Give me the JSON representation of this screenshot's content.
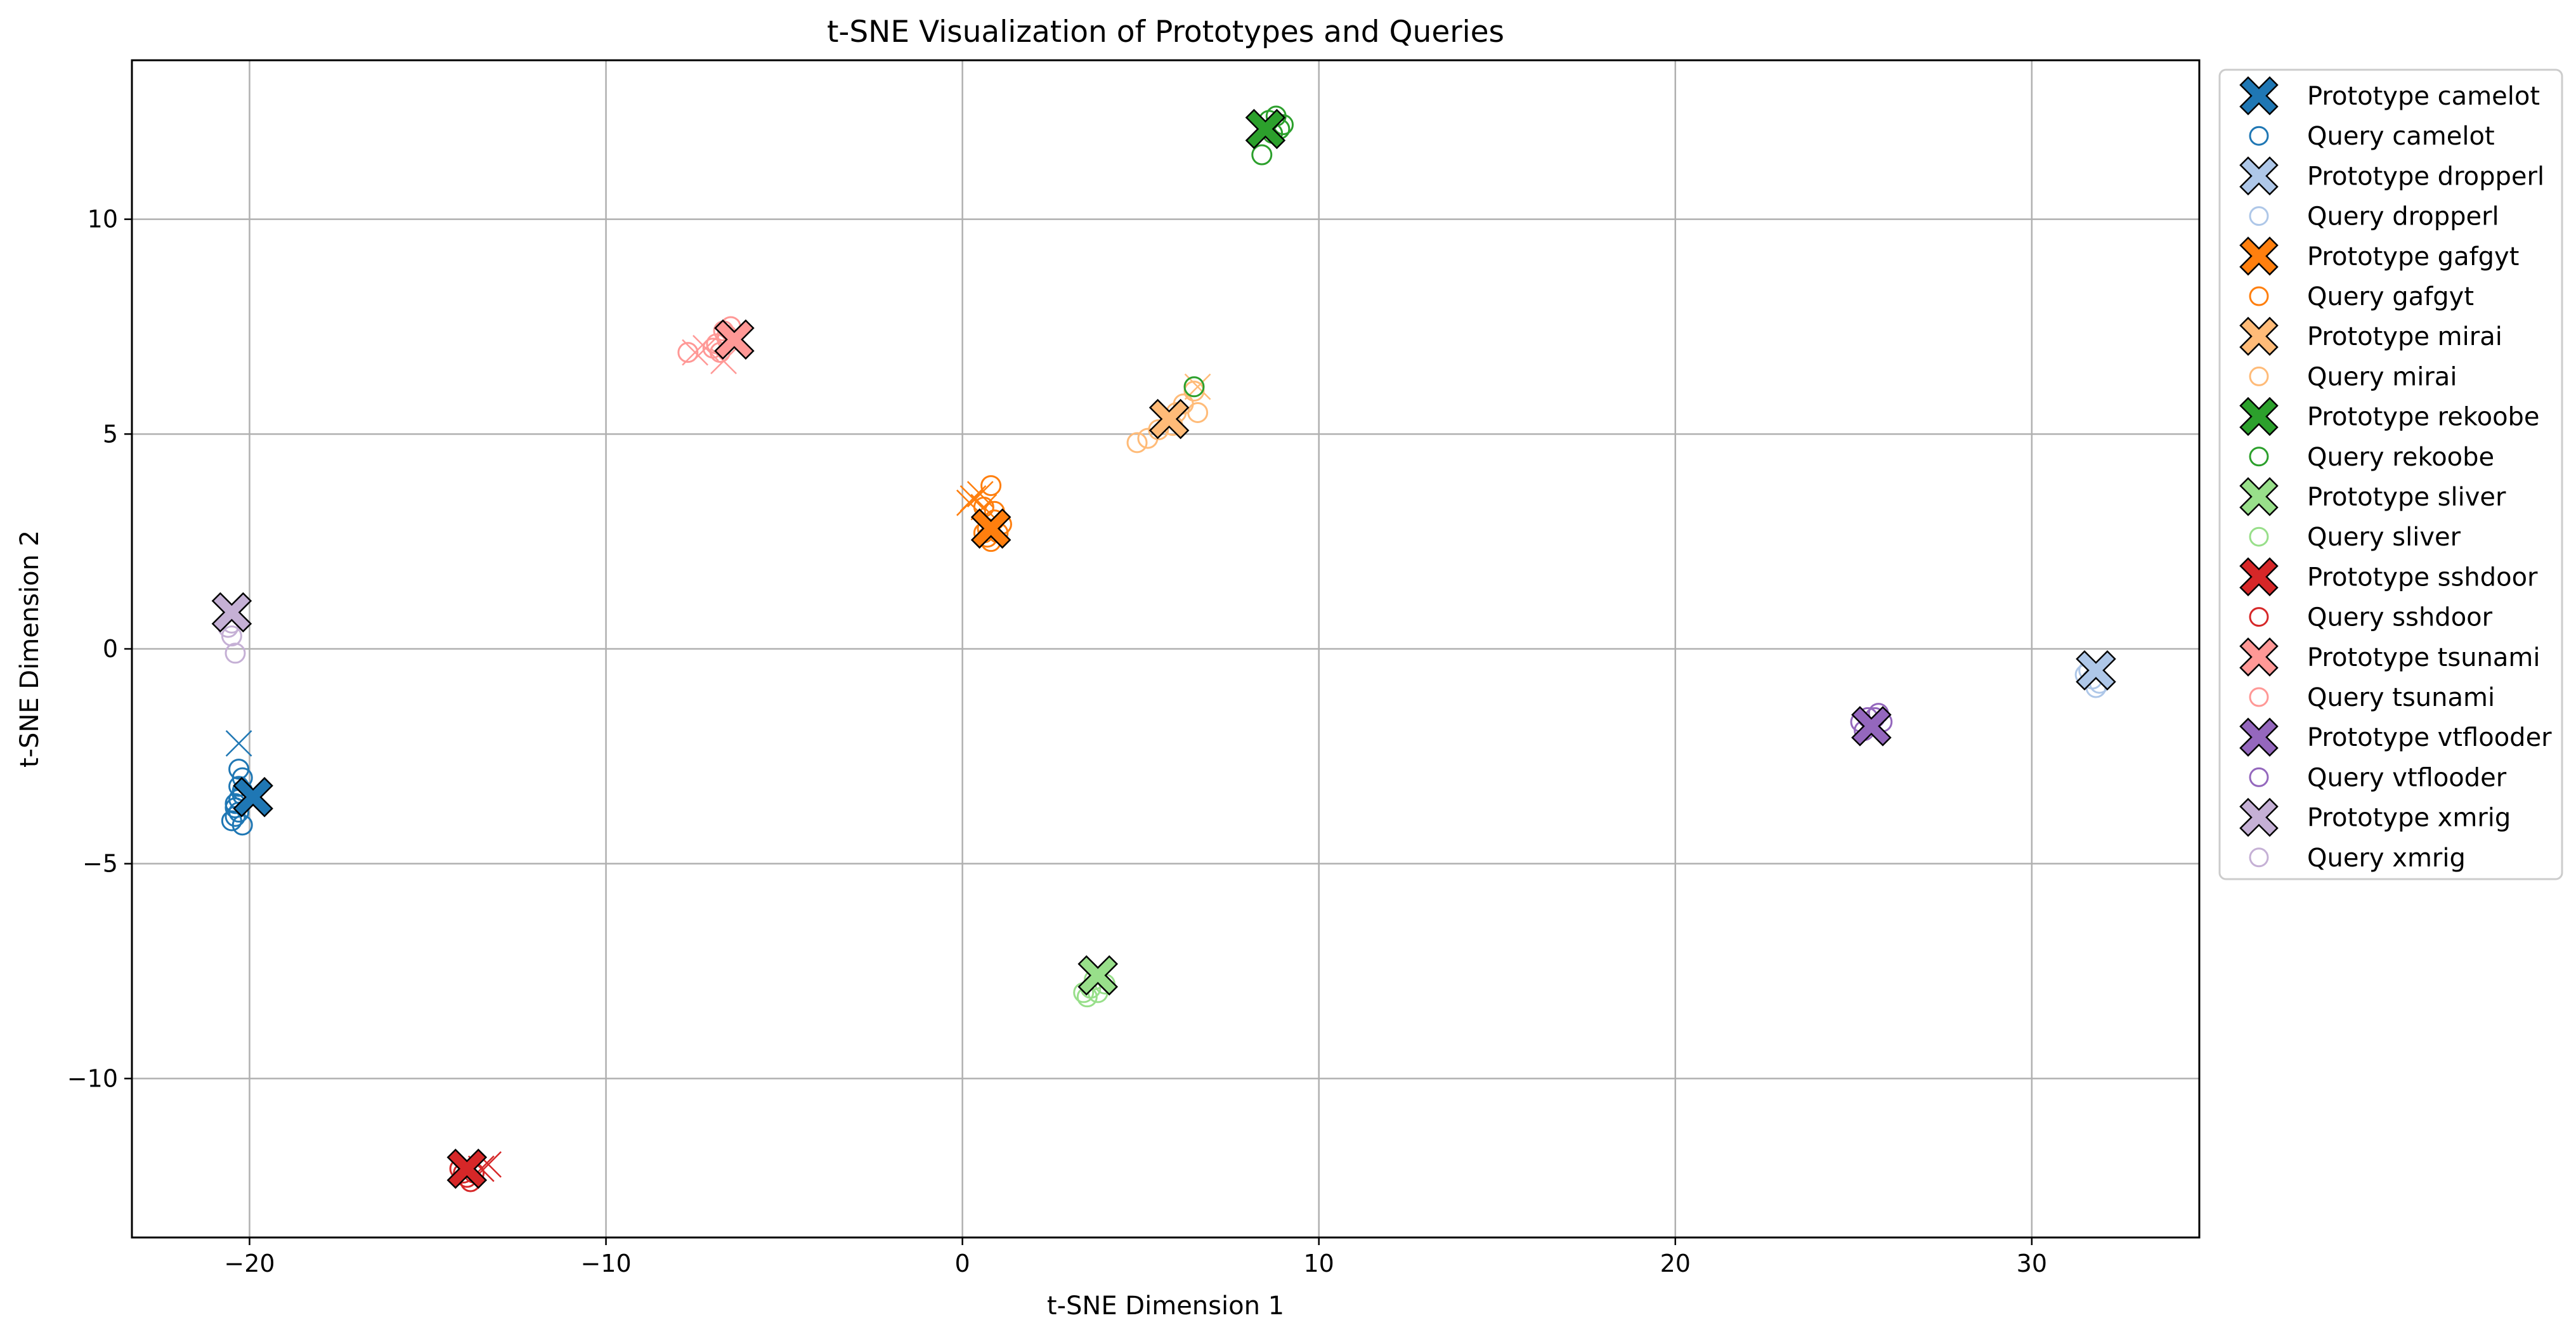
{
  "chart_data": {
    "type": "scatter",
    "title": "t-SNE Visualization of Prototypes and Queries",
    "xlabel": "t-SNE Dimension 1",
    "ylabel": "t-SNE Dimension 2",
    "xlim": [
      -23.3,
      34.7
    ],
    "ylim": [
      -13.7,
      13.7
    ],
    "xticks": [
      -20,
      -10,
      0,
      10,
      20,
      30
    ],
    "yticks": [
      -10,
      -5,
      0,
      5,
      10
    ],
    "xtick_labels": [
      "−20",
      "−10",
      "0",
      "10",
      "20",
      "30"
    ],
    "ytick_labels": [
      "−10",
      "−5",
      "0",
      "5",
      "10"
    ],
    "grid": true,
    "legend_position": "outside-right",
    "series": [
      {
        "name": "camelot",
        "color": "#1f77b4",
        "prototype": [
          -19.9,
          -3.45
        ],
        "queries": [
          [
            -20.3,
            -2.8
          ],
          [
            -20.2,
            -3.0
          ],
          [
            -20.3,
            -3.2
          ],
          [
            -20.2,
            -3.4
          ],
          [
            -20.4,
            -3.6
          ],
          [
            -20.3,
            -3.8
          ],
          [
            -20.5,
            -4.0
          ],
          [
            -20.2,
            -4.1
          ],
          [
            -20.4,
            -3.9
          ],
          [
            -20.3,
            -3.5
          ],
          [
            -20.2,
            -3.3
          ],
          [
            -20.4,
            -3.7
          ]
        ],
        "misclassified": [
          [
            -20.3,
            -2.2
          ]
        ]
      },
      {
        "name": "dropperl",
        "color": "#aec7e8",
        "prototype": [
          31.8,
          -0.5
        ],
        "queries": [
          [
            31.5,
            -0.6
          ],
          [
            31.7,
            -0.7
          ],
          [
            31.9,
            -0.8
          ],
          [
            31.6,
            -0.5
          ],
          [
            31.8,
            -0.9
          ]
        ],
        "misclassified": []
      },
      {
        "name": "gafgyt",
        "color": "#ff7f0e",
        "prototype": [
          0.8,
          2.8
        ],
        "queries": [
          [
            0.8,
            3.8
          ],
          [
            0.6,
            3.3
          ],
          [
            0.9,
            3.0
          ],
          [
            0.7,
            2.6
          ],
          [
            1.0,
            2.7
          ],
          [
            0.8,
            2.5
          ],
          [
            0.6,
            2.7
          ],
          [
            1.1,
            2.9
          ],
          [
            0.9,
            3.2
          ],
          [
            0.7,
            2.8
          ]
        ],
        "misclassified": [
          [
            0.3,
            3.5
          ],
          [
            0.5,
            3.6
          ],
          [
            0.2,
            3.4
          ],
          [
            0.6,
            3.3
          ]
        ]
      },
      {
        "name": "mirai",
        "color": "#ffbb78",
        "prototype": [
          5.8,
          5.35
        ],
        "queries": [
          [
            4.9,
            4.8
          ],
          [
            5.2,
            4.9
          ],
          [
            5.5,
            5.1
          ],
          [
            6.0,
            5.5
          ],
          [
            6.2,
            5.7
          ],
          [
            6.6,
            5.5
          ],
          [
            6.5,
            6.0
          ],
          [
            5.9,
            5.2
          ]
        ],
        "misclassified": [
          [
            6.6,
            6.1
          ]
        ]
      },
      {
        "name": "rekoobe",
        "color": "#2ca02c",
        "prototype": [
          8.5,
          12.1
        ],
        "queries": [
          [
            8.4,
            11.5
          ],
          [
            8.6,
            12.3
          ],
          [
            8.8,
            12.4
          ],
          [
            8.9,
            12.1
          ],
          [
            8.7,
            12.0
          ],
          [
            9.0,
            12.2
          ],
          [
            6.5,
            6.1
          ]
        ],
        "misclassified": []
      },
      {
        "name": "sliver",
        "color": "#98df8a",
        "prototype": [
          3.8,
          -7.6
        ],
        "queries": [
          [
            3.4,
            -8.0
          ],
          [
            3.6,
            -7.9
          ],
          [
            3.8,
            -8.0
          ],
          [
            4.0,
            -7.8
          ],
          [
            3.5,
            -8.1
          ],
          [
            3.7,
            -7.7
          ]
        ],
        "misclassified": []
      },
      {
        "name": "sshdoor",
        "color": "#d62728",
        "prototype": [
          -13.9,
          -12.1
        ],
        "queries": [
          [
            -13.9,
            -12.3
          ],
          [
            -14.0,
            -12.2
          ],
          [
            -13.8,
            -12.4
          ],
          [
            -14.1,
            -12.1
          ],
          [
            -13.7,
            -12.2
          ]
        ],
        "misclassified": [
          [
            -13.3,
            -12.0
          ],
          [
            -13.5,
            -12.1
          ]
        ]
      },
      {
        "name": "tsunami",
        "color": "#ff9896",
        "prototype": [
          -6.4,
          7.2
        ],
        "queries": [
          [
            -6.7,
            7.4
          ],
          [
            -6.6,
            7.3
          ],
          [
            -6.9,
            7.1
          ],
          [
            -7.0,
            7.0
          ],
          [
            -6.5,
            7.5
          ],
          [
            -6.8,
            6.9
          ],
          [
            -6.6,
            7.2
          ],
          [
            -7.7,
            6.9
          ]
        ],
        "misclassified": [
          [
            -7.5,
            6.9
          ],
          [
            -6.7,
            6.7
          ],
          [
            -7.2,
            7.0
          ]
        ]
      },
      {
        "name": "vtflooder",
        "color": "#9467bd",
        "prototype": [
          25.5,
          -1.8
        ],
        "queries": [
          [
            25.2,
            -1.7
          ],
          [
            25.4,
            -1.6
          ],
          [
            25.6,
            -1.6
          ],
          [
            25.8,
            -1.7
          ],
          [
            25.3,
            -1.9
          ],
          [
            25.7,
            -1.5
          ]
        ],
        "misclassified": []
      },
      {
        "name": "xmrig",
        "color": "#c5b0d5",
        "prototype": [
          -20.5,
          0.85
        ],
        "queries": [
          [
            -20.6,
            0.5
          ],
          [
            -20.5,
            0.3
          ],
          [
            -20.4,
            -0.1
          ],
          [
            -20.5,
            0.6
          ]
        ],
        "misclassified": []
      }
    ],
    "legend": [
      {
        "label": "Prototype camelot",
        "kind": "prototype",
        "color": "#1f77b4"
      },
      {
        "label": "Query camelot",
        "kind": "query",
        "color": "#1f77b4"
      },
      {
        "label": "Prototype dropperl",
        "kind": "prototype",
        "color": "#aec7e8"
      },
      {
        "label": "Query dropperl",
        "kind": "query",
        "color": "#aec7e8"
      },
      {
        "label": "Prototype gafgyt",
        "kind": "prototype",
        "color": "#ff7f0e"
      },
      {
        "label": "Query gafgyt",
        "kind": "query",
        "color": "#ff7f0e"
      },
      {
        "label": "Prototype mirai",
        "kind": "prototype",
        "color": "#ffbb78"
      },
      {
        "label": "Query mirai",
        "kind": "query",
        "color": "#ffbb78"
      },
      {
        "label": "Prototype rekoobe",
        "kind": "prototype",
        "color": "#2ca02c"
      },
      {
        "label": "Query rekoobe",
        "kind": "query",
        "color": "#2ca02c"
      },
      {
        "label": "Prototype sliver",
        "kind": "prototype",
        "color": "#98df8a"
      },
      {
        "label": "Query sliver",
        "kind": "query",
        "color": "#98df8a"
      },
      {
        "label": "Prototype sshdoor",
        "kind": "prototype",
        "color": "#d62728"
      },
      {
        "label": "Query sshdoor",
        "kind": "query",
        "color": "#d62728"
      },
      {
        "label": "Prototype tsunami",
        "kind": "prototype",
        "color": "#ff9896"
      },
      {
        "label": "Query tsunami",
        "kind": "query",
        "color": "#ff9896"
      },
      {
        "label": "Prototype vtflooder",
        "kind": "prototype",
        "color": "#9467bd"
      },
      {
        "label": "Query vtflooder",
        "kind": "query",
        "color": "#9467bd"
      },
      {
        "label": "Prototype xmrig",
        "kind": "prototype",
        "color": "#c5b0d5"
      },
      {
        "label": "Query xmrig",
        "kind": "query",
        "color": "#c5b0d5"
      }
    ]
  }
}
